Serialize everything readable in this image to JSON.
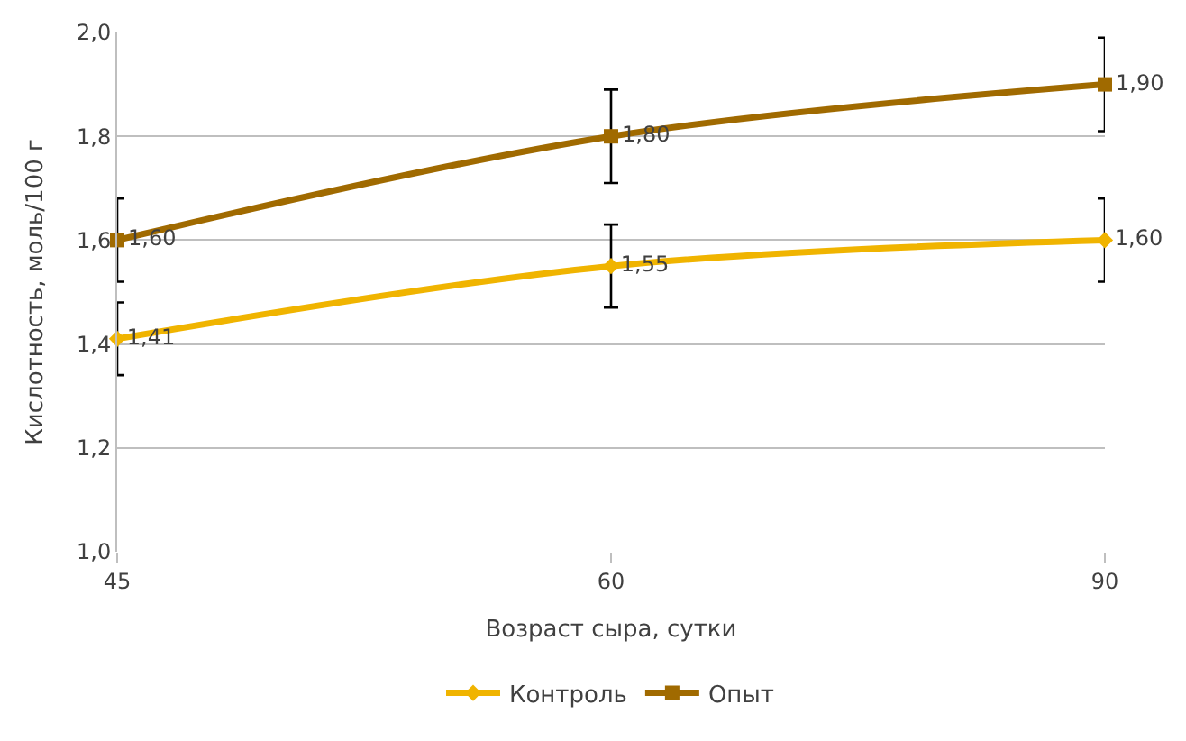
{
  "chart_data": {
    "type": "line",
    "xlabel": "Возраст сыра, сутки",
    "ylabel": "Кислотность, моль/100 г",
    "categories": [
      "45",
      "60",
      "90"
    ],
    "series": [
      {
        "name": "Контроль",
        "color": "#f0b400",
        "marker": "diamond",
        "values": [
          1.41,
          1.55,
          1.6
        ],
        "errors": [
          0.07,
          0.08,
          0.08
        ],
        "value_labels": [
          "1,41",
          "1,55",
          "1,60"
        ]
      },
      {
        "name": "Опыт",
        "color": "#a06a00",
        "marker": "square",
        "values": [
          1.6,
          1.8,
          1.9
        ],
        "errors": [
          0.08,
          0.09,
          0.09
        ],
        "value_labels": [
          "1,60",
          "1,80",
          "1,90"
        ]
      }
    ],
    "ylim": [
      1.0,
      2.0
    ],
    "yticks": [
      {
        "value": 1.0,
        "label": "1,0"
      },
      {
        "value": 1.2,
        "label": "1,2"
      },
      {
        "value": 1.4,
        "label": "1,4"
      },
      {
        "value": 1.6,
        "label": "1,6"
      },
      {
        "value": 1.8,
        "label": "1,8"
      },
      {
        "value": 2.0,
        "label": "2,0"
      }
    ],
    "grid": "y",
    "legend": "bottom"
  }
}
